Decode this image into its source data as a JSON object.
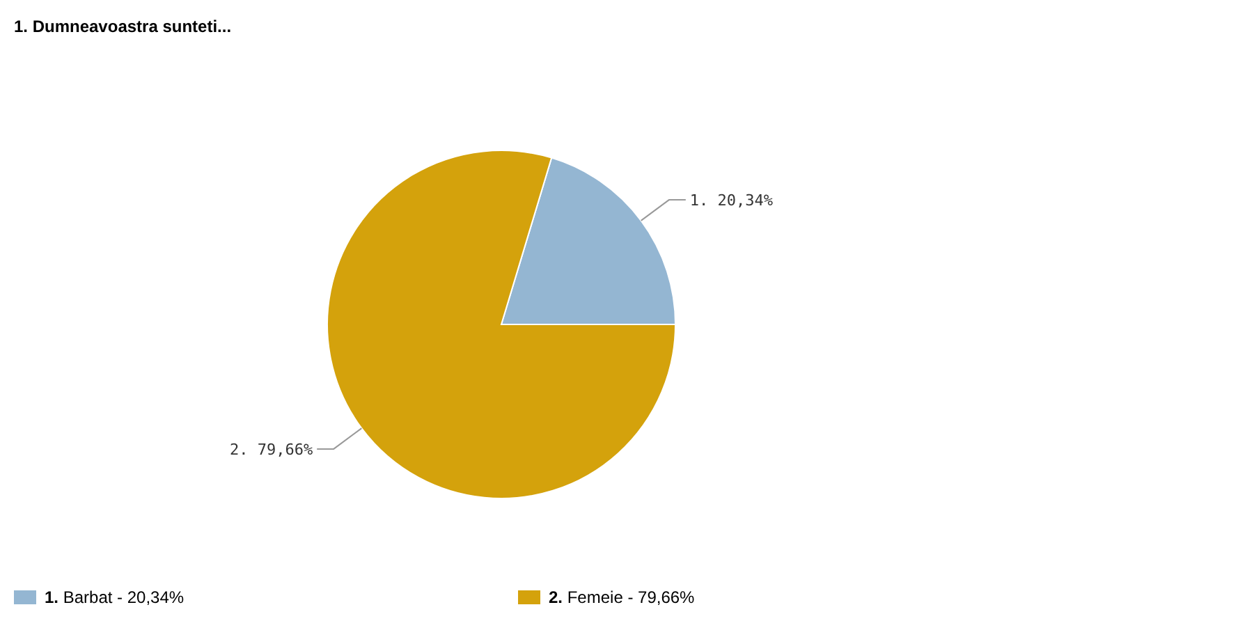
{
  "chart_data": {
    "type": "pie",
    "title": "1. Dumneavoastra sunteti...",
    "categories": [
      "1. Barbat - 20,34%",
      "2. Femeie - 79,66%"
    ],
    "values": [
      20.34,
      79.66
    ],
    "colors": [
      "#94b6d2",
      "#d4a20c"
    ],
    "value_labels": [
      "1. 20,34%",
      "2. 79,66%"
    ],
    "legend": "bottom"
  }
}
